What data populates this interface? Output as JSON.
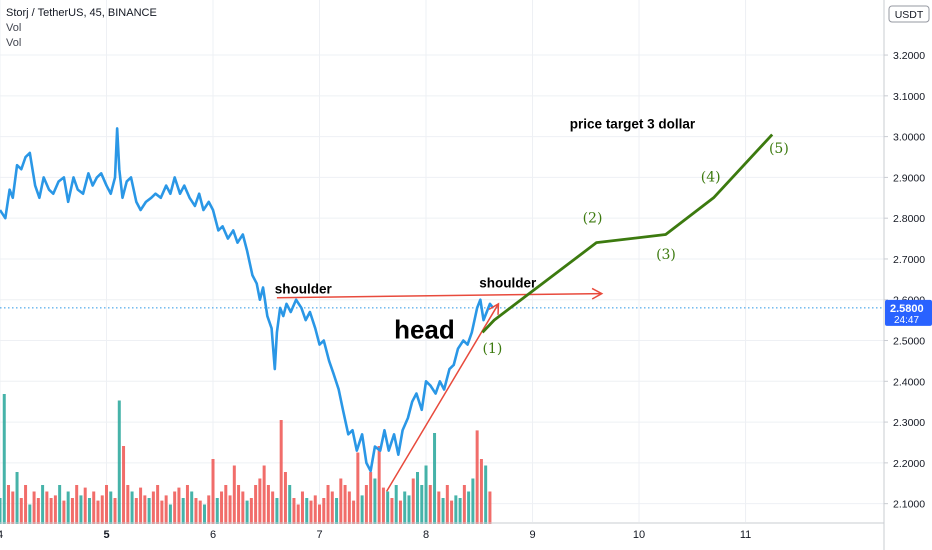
{
  "header": {
    "symbol_title": "Storj / TetherUS, 45, BINANCE",
    "indicators": [
      "Vol",
      "Vol"
    ]
  },
  "currency_badge": "USDT",
  "price_tag": {
    "value": "2.5800",
    "countdown": "24:47"
  },
  "colors": {
    "price_line": "#2a97e6",
    "vol_up": "#26a69a",
    "vol_down": "#ef5350",
    "projection": "#3c7a0f",
    "neckline_arrow": "#e84a3c",
    "axis_text": "#131722",
    "grid": "#eef0f4",
    "badge": "#2962ff"
  },
  "chart_data": {
    "type": "line",
    "title": "Storj / TetherUS, 45, BINANCE",
    "xlabel": "",
    "ylabel": "",
    "x_ticks": [
      "4",
      "5",
      "6",
      "7",
      "8",
      "9",
      "10",
      "11"
    ],
    "x_tick_bold": [
      "5"
    ],
    "xlim": [
      4.0,
      12.3
    ],
    "y_ticks": [
      "2.1000",
      "2.2000",
      "2.3000",
      "2.4000",
      "2.5000",
      "2.6000",
      "2.7000",
      "2.8000",
      "2.9000",
      "3.0000",
      "3.1000",
      "3.2000"
    ],
    "ylim": [
      2.055,
      3.335
    ],
    "grid": true,
    "series": [
      {
        "type": "line",
        "x": [
          4.0,
          4.05,
          4.09,
          4.12,
          4.16,
          4.2,
          4.24,
          4.28,
          4.33,
          4.37,
          4.41,
          4.46,
          4.5,
          4.55,
          4.6,
          4.64,
          4.69,
          4.73,
          4.78,
          4.83,
          4.87,
          4.91,
          4.95,
          5.0,
          5.04,
          5.08,
          5.1,
          5.12,
          5.15,
          5.19,
          5.23,
          5.28,
          5.32,
          5.37,
          5.42,
          5.46,
          5.51,
          5.56,
          5.6,
          5.64,
          5.69,
          5.73,
          5.78,
          5.83,
          5.87,
          5.91,
          5.96,
          6.0,
          6.05,
          6.09,
          6.14,
          6.19,
          6.23,
          6.28,
          6.32,
          6.37,
          6.41,
          6.44,
          6.47,
          6.51,
          6.55,
          6.58,
          6.6,
          6.63,
          6.66,
          6.69,
          6.73,
          6.78,
          6.83,
          6.87,
          6.91,
          6.96,
          7.0,
          7.04,
          7.09,
          7.13,
          7.18,
          7.22,
          7.27,
          7.31,
          7.35,
          7.4,
          7.44,
          7.48,
          7.52,
          7.57,
          7.61,
          7.65,
          7.7,
          7.74,
          7.78,
          7.83,
          7.87,
          7.91,
          7.96,
          8.0,
          8.04,
          8.09,
          8.13,
          8.17,
          8.22,
          8.26,
          8.3,
          8.35,
          8.39,
          8.43,
          8.48,
          8.51,
          8.54,
          8.57,
          8.6,
          8.63
        ],
        "y": [
          2.82,
          2.8,
          2.87,
          2.85,
          2.93,
          2.92,
          2.95,
          2.96,
          2.88,
          2.85,
          2.9,
          2.87,
          2.86,
          2.89,
          2.9,
          2.84,
          2.9,
          2.87,
          2.86,
          2.91,
          2.88,
          2.9,
          2.91,
          2.88,
          2.86,
          2.9,
          3.02,
          2.92,
          2.85,
          2.89,
          2.9,
          2.84,
          2.82,
          2.84,
          2.85,
          2.86,
          2.85,
          2.88,
          2.86,
          2.9,
          2.86,
          2.88,
          2.85,
          2.83,
          2.86,
          2.82,
          2.84,
          2.82,
          2.77,
          2.78,
          2.75,
          2.77,
          2.74,
          2.76,
          2.72,
          2.66,
          2.64,
          2.6,
          2.63,
          2.56,
          2.53,
          2.43,
          2.52,
          2.58,
          2.56,
          2.59,
          2.57,
          2.6,
          2.58,
          2.55,
          2.57,
          2.53,
          2.49,
          2.5,
          2.45,
          2.42,
          2.38,
          2.33,
          2.27,
          2.28,
          2.23,
          2.27,
          2.2,
          2.18,
          2.24,
          2.23,
          2.28,
          2.23,
          2.27,
          2.22,
          2.28,
          2.31,
          2.35,
          2.37,
          2.33,
          2.4,
          2.39,
          2.37,
          2.4,
          2.38,
          2.43,
          2.44,
          2.48,
          2.5,
          2.49,
          2.52,
          2.58,
          2.6,
          2.55,
          2.57,
          2.59,
          2.58
        ]
      },
      {
        "type": "bar",
        "name": "Vol",
        "x": [
          4.0,
          4.04,
          4.08,
          4.12,
          4.16,
          4.2,
          4.24,
          4.28,
          4.32,
          4.36,
          4.4,
          4.44,
          4.48,
          4.52,
          4.56,
          4.6,
          4.64,
          4.68,
          4.72,
          4.76,
          4.8,
          4.84,
          4.88,
          4.92,
          4.96,
          5.0,
          5.04,
          5.08,
          5.12,
          5.16,
          5.2,
          5.24,
          5.28,
          5.32,
          5.36,
          5.4,
          5.44,
          5.48,
          5.52,
          5.56,
          5.6,
          5.64,
          5.68,
          5.72,
          5.76,
          5.8,
          5.84,
          5.88,
          5.92,
          5.96,
          6.0,
          6.04,
          6.08,
          6.12,
          6.16,
          6.2,
          6.24,
          6.28,
          6.32,
          6.36,
          6.4,
          6.44,
          6.48,
          6.52,
          6.56,
          6.6,
          6.64,
          6.68,
          6.72,
          6.76,
          6.8,
          6.84,
          6.88,
          6.92,
          6.96,
          7.0,
          7.04,
          7.08,
          7.12,
          7.16,
          7.2,
          7.24,
          7.28,
          7.32,
          7.36,
          7.4,
          7.44,
          7.48,
          7.52,
          7.56,
          7.6,
          7.64,
          7.68,
          7.72,
          7.76,
          7.8,
          7.84,
          7.88,
          7.92,
          7.96,
          8.0,
          8.04,
          8.08,
          8.12,
          8.16,
          8.2,
          8.24,
          8.28,
          8.32,
          8.36,
          8.4,
          8.44,
          8.48,
          8.52,
          8.56,
          8.6
        ],
        "values": [
          0.2,
          1.0,
          0.3,
          0.25,
          0.4,
          0.2,
          0.3,
          0.15,
          0.25,
          0.2,
          0.3,
          0.25,
          0.2,
          0.22,
          0.3,
          0.18,
          0.25,
          0.2,
          0.3,
          0.22,
          0.28,
          0.2,
          0.25,
          0.18,
          0.22,
          0.3,
          0.25,
          0.2,
          0.95,
          0.6,
          0.3,
          0.25,
          0.2,
          0.28,
          0.22,
          0.2,
          0.25,
          0.3,
          0.18,
          0.22,
          0.15,
          0.25,
          0.28,
          0.2,
          0.3,
          0.25,
          0.2,
          0.18,
          0.15,
          0.22,
          0.5,
          0.2,
          0.25,
          0.3,
          0.22,
          0.45,
          0.3,
          0.25,
          0.18,
          0.2,
          0.3,
          0.35,
          0.45,
          0.3,
          0.25,
          0.2,
          0.8,
          0.4,
          0.3,
          0.2,
          0.15,
          0.25,
          0.2,
          0.18,
          0.22,
          0.15,
          0.2,
          0.3,
          0.25,
          0.2,
          0.35,
          0.3,
          0.25,
          0.18,
          0.55,
          0.22,
          0.3,
          0.4,
          0.35,
          0.6,
          0.28,
          0.25,
          0.2,
          0.3,
          0.18,
          0.25,
          0.22,
          0.35,
          0.4,
          0.3,
          0.45,
          0.3,
          0.7,
          0.25,
          0.2,
          0.3,
          0.18,
          0.22,
          0.2,
          0.3,
          0.25,
          0.35,
          0.72,
          0.5,
          0.45,
          0.25
        ],
        "up": [
          true,
          true,
          false,
          false,
          true,
          false,
          false,
          true,
          false,
          false,
          true,
          false,
          false,
          false,
          true,
          false,
          true,
          false,
          false,
          true,
          false,
          true,
          false,
          false,
          false,
          false,
          true,
          false,
          true,
          false,
          false,
          true,
          false,
          false,
          false,
          true,
          false,
          false,
          false,
          false,
          true,
          false,
          false,
          true,
          false,
          true,
          false,
          false,
          true,
          false,
          false,
          true,
          false,
          false,
          false,
          false,
          false,
          false,
          true,
          false,
          false,
          false,
          false,
          false,
          false,
          true,
          false,
          false,
          true,
          false,
          false,
          false,
          true,
          false,
          false,
          false,
          false,
          false,
          false,
          true,
          false,
          false,
          false,
          false,
          false,
          true,
          false,
          false,
          true,
          false,
          false,
          true,
          false,
          true,
          false,
          true,
          true,
          false,
          true,
          true,
          true,
          false,
          true,
          false,
          true,
          false,
          false,
          true,
          true,
          false,
          true,
          true,
          false,
          false,
          true,
          false
        ]
      }
    ],
    "annotations": [
      {
        "text": "shoulder",
        "x": 6.58,
        "y": 2.615
      },
      {
        "text": "head",
        "x": 7.7,
        "y": 2.505
      },
      {
        "text": "shoulder",
        "x": 8.5,
        "y": 2.63
      },
      {
        "text": "price target 3 dollar",
        "x": 9.35,
        "y": 3.02
      },
      {
        "text": "(1)",
        "x": 8.53,
        "y": 2.47
      },
      {
        "text": "(2)",
        "x": 9.47,
        "y": 2.79
      },
      {
        "text": "(3)",
        "x": 10.16,
        "y": 2.7
      },
      {
        "text": "(4)",
        "x": 10.58,
        "y": 2.89
      },
      {
        "text": "(5)",
        "x": 11.22,
        "y": 2.96
      }
    ],
    "projection": {
      "x": [
        8.53,
        8.64,
        9.6,
        10.25,
        10.7,
        11.25
      ],
      "y": [
        2.52,
        2.55,
        2.74,
        2.76,
        2.85,
        3.005
      ]
    },
    "trendline": {
      "x": [
        7.63,
        8.68
      ],
      "y": [
        2.13,
        2.59
      ]
    },
    "neckline_arrow": {
      "x": [
        6.6,
        9.65
      ],
      "y": [
        2.605,
        2.615
      ]
    },
    "price_level": 2.58
  }
}
